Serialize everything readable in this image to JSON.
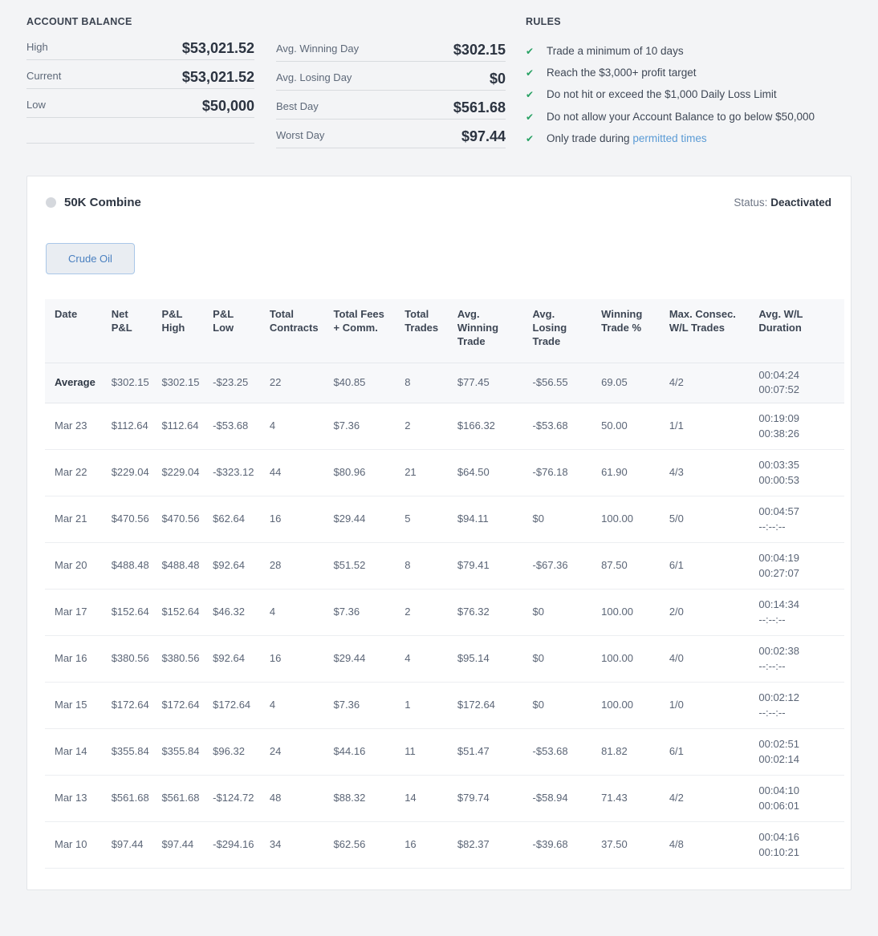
{
  "account_balance": {
    "title": "ACCOUNT BALANCE",
    "rows": [
      {
        "label": "High",
        "value": "$53,021.52"
      },
      {
        "label": "Current",
        "value": "$53,021.52"
      },
      {
        "label": "Low",
        "value": "$50,000"
      }
    ]
  },
  "day_stats": {
    "rows": [
      {
        "label": "Avg. Winning Day",
        "value": "$302.15"
      },
      {
        "label": "Avg. Losing Day",
        "value": "$0"
      },
      {
        "label": "Best Day",
        "value": "$561.68"
      },
      {
        "label": "Worst Day",
        "value": "$97.44"
      }
    ]
  },
  "rules": {
    "title": "RULES",
    "check_color": "#27a163",
    "link_color": "#5b9bd5",
    "items": [
      {
        "text": "Trade a minimum of 10 days"
      },
      {
        "text": "Reach the $3,000+ profit target"
      },
      {
        "text": "Do not hit or exceed the $1,000 Daily Loss Limit"
      },
      {
        "text": "Do not allow your Account Balance to go below $50,000"
      },
      {
        "text": "Only trade during ",
        "link": "permitted times"
      }
    ]
  },
  "panel": {
    "title": "50K Combine",
    "status_label": "Status:",
    "status_value": "Deactivated",
    "tab": "Crude Oil"
  },
  "table": {
    "columns": [
      "Date",
      "Net P&L",
      "P&L High",
      "P&L Low",
      "Total Contracts",
      "Total Fees + Comm.",
      "Total Trades",
      "Avg. Winning Trade",
      "Avg. Losing Trade",
      "Winning Trade %",
      "Max. Consec. W/L Trades",
      "Avg. W/L Duration"
    ],
    "average_row": [
      "Average",
      "$302.15",
      "$302.15",
      "-$23.25",
      "22",
      "$40.85",
      "8",
      "$77.45",
      "-$56.55",
      "69.05",
      "4/2",
      [
        "00:04:24",
        "00:07:52"
      ]
    ],
    "rows": [
      [
        "Mar 23",
        "$112.64",
        "$112.64",
        "-$53.68",
        "4",
        "$7.36",
        "2",
        "$166.32",
        "-$53.68",
        "50.00",
        "1/1",
        [
          "00:19:09",
          "00:38:26"
        ]
      ],
      [
        "Mar 22",
        "$229.04",
        "$229.04",
        "-$323.12",
        "44",
        "$80.96",
        "21",
        "$64.50",
        "-$76.18",
        "61.90",
        "4/3",
        [
          "00:03:35",
          "00:00:53"
        ]
      ],
      [
        "Mar 21",
        "$470.56",
        "$470.56",
        "$62.64",
        "16",
        "$29.44",
        "5",
        "$94.11",
        "$0",
        "100.00",
        "5/0",
        [
          "00:04:57",
          "--:--:--"
        ]
      ],
      [
        "Mar 20",
        "$488.48",
        "$488.48",
        "$92.64",
        "28",
        "$51.52",
        "8",
        "$79.41",
        "-$67.36",
        "87.50",
        "6/1",
        [
          "00:04:19",
          "00:27:07"
        ]
      ],
      [
        "Mar 17",
        "$152.64",
        "$152.64",
        "$46.32",
        "4",
        "$7.36",
        "2",
        "$76.32",
        "$0",
        "100.00",
        "2/0",
        [
          "00:14:34",
          "--:--:--"
        ]
      ],
      [
        "Mar 16",
        "$380.56",
        "$380.56",
        "$92.64",
        "16",
        "$29.44",
        "4",
        "$95.14",
        "$0",
        "100.00",
        "4/0",
        [
          "00:02:38",
          "--:--:--"
        ]
      ],
      [
        "Mar 15",
        "$172.64",
        "$172.64",
        "$172.64",
        "4",
        "$7.36",
        "1",
        "$172.64",
        "$0",
        "100.00",
        "1/0",
        [
          "00:02:12",
          "--:--:--"
        ]
      ],
      [
        "Mar 14",
        "$355.84",
        "$355.84",
        "$96.32",
        "24",
        "$44.16",
        "11",
        "$51.47",
        "-$53.68",
        "81.82",
        "6/1",
        [
          "00:02:51",
          "00:02:14"
        ]
      ],
      [
        "Mar 13",
        "$561.68",
        "$561.68",
        "-$124.72",
        "48",
        "$88.32",
        "14",
        "$79.74",
        "-$58.94",
        "71.43",
        "4/2",
        [
          "00:04:10",
          "00:06:01"
        ]
      ],
      [
        "Mar 10",
        "$97.44",
        "$97.44",
        "-$294.16",
        "34",
        "$62.56",
        "16",
        "$82.37",
        "-$39.68",
        "37.50",
        "4/8",
        [
          "00:04:16",
          "00:10:21"
        ]
      ]
    ]
  }
}
